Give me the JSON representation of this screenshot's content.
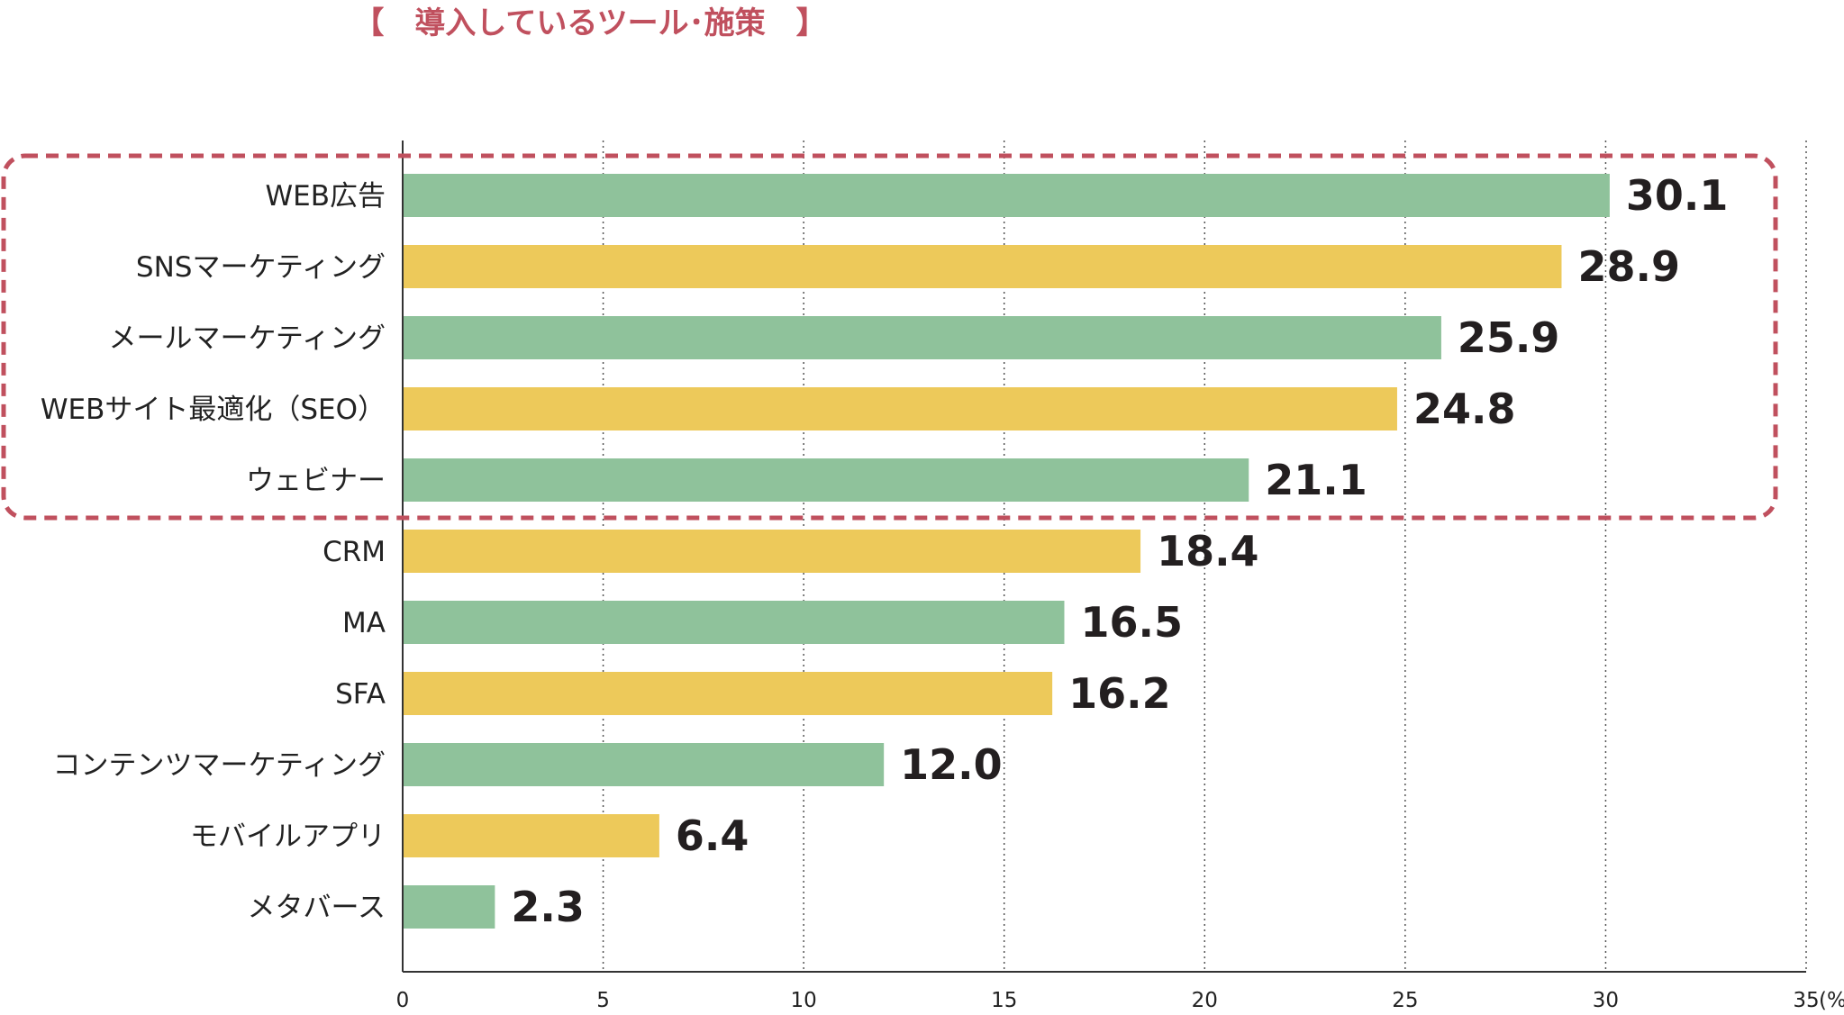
{
  "chart_data": {
    "type": "bar",
    "orientation": "horizontal",
    "title": "【　導入しているツール･施策　】",
    "categories": [
      "WEB広告",
      "SNSマーケティング",
      "メールマーケティング",
      "WEBサイト最適化（SEO）",
      "ウェビナー",
      "CRM",
      "MA",
      "SFA",
      "コンテンツマーケティング",
      "モバイルアプリ",
      "メタバース"
    ],
    "values": [
      30.1,
      28.9,
      25.9,
      24.8,
      21.1,
      18.4,
      16.5,
      16.2,
      12.0,
      6.4,
      2.3
    ],
    "value_labels": [
      "30.1",
      "28.9",
      "25.9",
      "24.8",
      "21.1",
      "18.4",
      "16.5",
      "16.2",
      "12.0",
      "6.4",
      "2.3"
    ],
    "xlim": [
      0,
      35
    ],
    "xticks": [
      0,
      5,
      10,
      15,
      20,
      25,
      30,
      35
    ],
    "xtick_labels": [
      "0",
      "5",
      "10",
      "15",
      "20",
      "25",
      "30",
      "35"
    ],
    "x_unit": "(%)",
    "grid": "vertical dotted",
    "highlighted_categories": [
      "WEB広告",
      "SNSマーケティング",
      "メールマーケティング",
      "WEBサイト最適化（SEO）",
      "ウェビナー"
    ]
  },
  "colors": {
    "bar_primary": "#8fc29b",
    "bar_alternate": "#edc95a",
    "title": "#c0505e",
    "highlight_border": "#c0505e",
    "grid": "#555555",
    "axis": "#333333",
    "text": "#222222"
  }
}
